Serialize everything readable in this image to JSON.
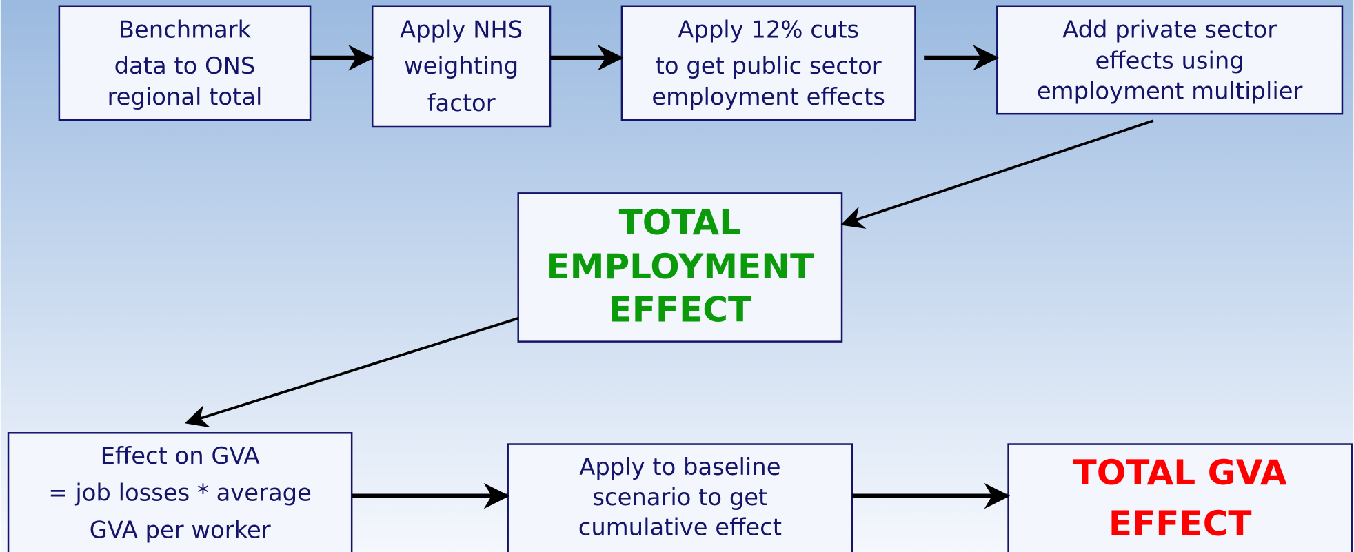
{
  "nodes": [
    {
      "lines": [
        "Benchmark",
        "data to ONS",
        "regional total"
      ]
    },
    {
      "lines": [
        "Apply NHS",
        "weighting",
        "factor"
      ]
    },
    {
      "lines": [
        "Apply 12% cuts",
        "to get public sector",
        "employment effects"
      ]
    },
    {
      "lines": [
        "Add private sector",
        "effects using",
        "employment multiplier"
      ]
    },
    {
      "lines": [
        "TOTAL",
        "EMPLOYMENT",
        "EFFECT"
      ]
    },
    {
      "lines": [
        "Effect on GVA",
        "= job losses * average",
        "GVA per worker"
      ]
    },
    {
      "lines": [
        "Apply to baseline",
        "scenario to get",
        "cumulative effect"
      ]
    },
    {
      "lines": [
        "TOTAL GVA",
        "EFFECT"
      ]
    }
  ]
}
